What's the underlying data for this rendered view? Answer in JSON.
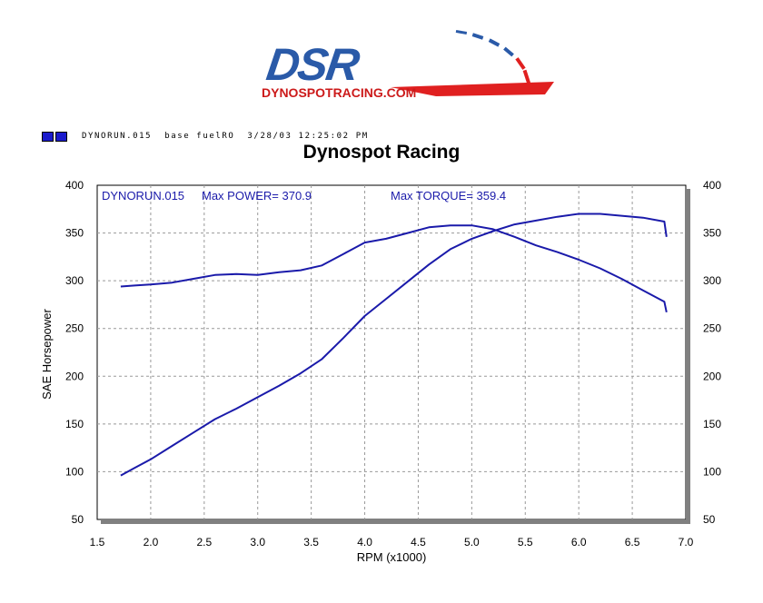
{
  "logo": {
    "brand": "DSR",
    "domain_text": "DYNOSPOTRACING.COM",
    "colors": {
      "blue": "#2a5aa8",
      "red": "#e02020"
    }
  },
  "run_info": {
    "swatch_color": "#1b1bcc",
    "file": "DYNORUN.015",
    "note": "base fuelRO",
    "datetime": "3/28/03 12:25:02 PM"
  },
  "chart_data": {
    "type": "line",
    "title": "Dynospot Racing",
    "xlabel": "RPM (x1000)",
    "ylabel": "SAE Horsepower",
    "xlim": [
      1.5,
      7.0
    ],
    "ylim": [
      50,
      400
    ],
    "xticks": [
      "1.5",
      "2.0",
      "2.5",
      "3.0",
      "3.5",
      "4.0",
      "4.5",
      "5.0",
      "5.5",
      "6.0",
      "6.5",
      "7.0"
    ],
    "yticks": [
      "50",
      "100",
      "150",
      "200",
      "250",
      "300",
      "350",
      "400"
    ],
    "yticks_right": [
      "50",
      "100",
      "150",
      "200",
      "250",
      "300",
      "350",
      "400"
    ],
    "grid": true,
    "line_color": "#1a1aaa",
    "annotations": {
      "run": "DYNORUN.015",
      "max_power": "Max POWER= 370.9",
      "max_torque": "Max TORQUE= 359.4"
    },
    "series": [
      {
        "x": [
          1.72,
          1.85,
          2.0,
          2.2,
          2.4,
          2.6,
          2.8,
          3.0,
          3.2,
          3.4,
          3.6,
          3.8,
          4.0,
          4.2,
          4.4,
          4.6,
          4.8,
          5.0,
          5.2,
          5.4,
          5.6,
          5.8,
          6.0,
          6.2,
          6.4,
          6.6,
          6.8,
          6.82
        ],
        "y": [
          96,
          104,
          113,
          127,
          141,
          155,
          166,
          178,
          190,
          203,
          218,
          240,
          263,
          281,
          299,
          317,
          333,
          344,
          352,
          359,
          363,
          367,
          370,
          370,
          368,
          366,
          362,
          346
        ]
      },
      {
        "x": [
          1.72,
          1.85,
          2.0,
          2.2,
          2.4,
          2.6,
          2.8,
          3.0,
          3.2,
          3.4,
          3.6,
          3.8,
          4.0,
          4.2,
          4.4,
          4.6,
          4.8,
          5.0,
          5.2,
          5.4,
          5.6,
          5.8,
          6.0,
          6.2,
          6.4,
          6.6,
          6.8,
          6.82
        ],
        "y": [
          294,
          295,
          296,
          298,
          302,
          306,
          307,
          306,
          309,
          311,
          316,
          328,
          340,
          344,
          350,
          356,
          358,
          358,
          354,
          346,
          337,
          330,
          322,
          313,
          302,
          290,
          278,
          267
        ]
      }
    ]
  }
}
